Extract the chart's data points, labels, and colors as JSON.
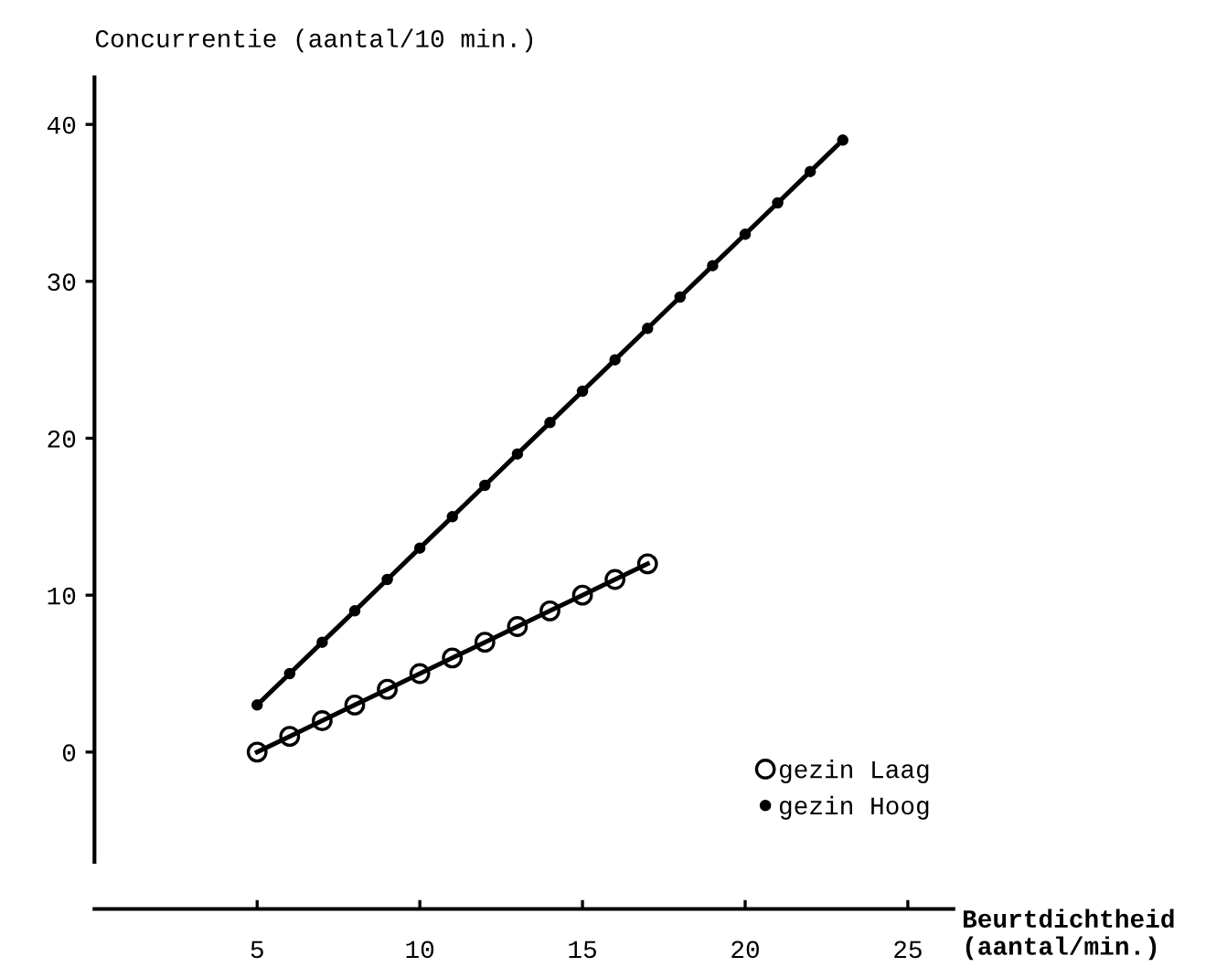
{
  "chart_data": {
    "type": "line",
    "xlabel": "Beurtdichtheid\n(aantal/min.)",
    "ylabel": "Concurrentie (aantal/10 min.)",
    "series": [
      {
        "name": "gezin Laag",
        "color": "#000000",
        "marker": "circle",
        "x": [
          5,
          6,
          7,
          8,
          9,
          10,
          11,
          12,
          13,
          14,
          15,
          16,
          17
        ],
        "values": [
          0,
          1,
          2,
          3,
          4,
          5,
          6,
          7,
          8,
          9,
          10,
          11,
          12
        ]
      },
      {
        "name": "gezin Hoog",
        "color": "#000000",
        "marker": "dot",
        "x": [
          5,
          6,
          7,
          8,
          9,
          10,
          11,
          12,
          13,
          14,
          15,
          16,
          17,
          18,
          19,
          20,
          21,
          22,
          23
        ],
        "values": [
          3,
          5,
          7,
          9,
          11,
          13,
          15,
          17,
          19,
          21,
          23,
          25,
          27,
          29,
          31,
          33,
          35,
          37,
          39
        ]
      }
    ],
    "xlim": [
      0,
      26.4
    ],
    "ylim": [
      -10,
      43
    ],
    "xticks": [
      5,
      10,
      15,
      20,
      25
    ],
    "yticks": [
      0,
      10,
      20,
      30,
      40
    ],
    "grid": false,
    "legend": "bottom right",
    "line_style": "solid"
  }
}
